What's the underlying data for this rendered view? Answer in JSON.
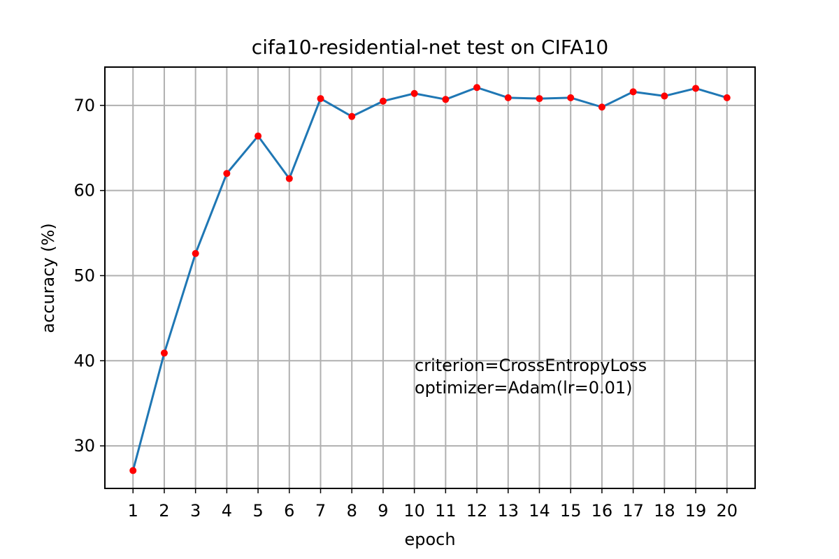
{
  "chart_data": {
    "type": "line",
    "title": "cifa10-residential-net test on CIFA10",
    "xlabel": "epoch",
    "ylabel": "accuracy (%)",
    "x": [
      1,
      2,
      3,
      4,
      5,
      6,
      7,
      8,
      9,
      10,
      11,
      12,
      13,
      14,
      15,
      16,
      17,
      18,
      19,
      20
    ],
    "x_tick_labels": [
      "1",
      "2",
      "3",
      "4",
      "5",
      "6",
      "7",
      "8",
      "9",
      "10",
      "11",
      "12",
      "13",
      "14",
      "15",
      "16",
      "17",
      "18",
      "19",
      "20"
    ],
    "y_ticks": [
      30,
      40,
      50,
      60,
      70
    ],
    "y_tick_labels": [
      "30",
      "40",
      "50",
      "60",
      "70"
    ],
    "xlim": [
      0.1,
      20.9
    ],
    "ylim": [
      25.0,
      74.5
    ],
    "grid": true,
    "series": [
      {
        "values": [
          27.1,
          40.9,
          52.6,
          62.0,
          66.4,
          61.4,
          70.8,
          68.7,
          70.5,
          71.4,
          70.7,
          72.1,
          70.9,
          70.8,
          70.9,
          69.8,
          71.6,
          71.1,
          72.0,
          70.9
        ],
        "line_color": "#1f77b4",
        "marker_color": "#ff0000"
      }
    ],
    "annotation": {
      "lines": [
        "criterion=CrossEntropyLoss",
        "optimizer=Adam(lr=0.01)"
      ]
    }
  }
}
